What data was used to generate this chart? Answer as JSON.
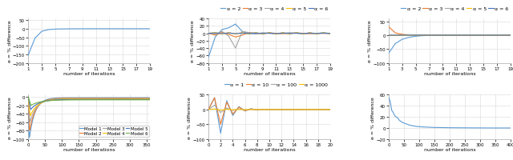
{
  "top_left": {
    "xlabel": "number of iterations",
    "ylabel": "e = % difference",
    "xlim": [
      1,
      19
    ],
    "ylim": [
      -200,
      60
    ],
    "yticks": [
      -200,
      -150,
      -100,
      -50,
      0,
      50
    ],
    "xticks": [
      1,
      3,
      5,
      7,
      9,
      11,
      13,
      15,
      17,
      19
    ],
    "line_color": "#5B9BD5",
    "x": [
      1,
      2,
      3,
      4,
      5,
      6,
      7,
      8,
      9,
      10,
      11,
      12,
      13,
      14,
      15,
      16,
      17,
      18,
      19
    ],
    "y": [
      -155,
      -55,
      -15,
      -5,
      -2,
      -1,
      -0.5,
      -0.3,
      -0.2,
      -0.1,
      -0.05,
      -0.02,
      -0.01,
      -0.005,
      -0.002,
      -0.001,
      -0.0005,
      -0.0002,
      -0.0001
    ]
  },
  "top_mid": {
    "xlabel": "number of iterations",
    "ylabel": "e = % difference",
    "xlim": [
      1,
      19
    ],
    "ylim": [
      -80,
      40
    ],
    "yticks": [
      -80,
      -60,
      -40,
      -20,
      0,
      20,
      40
    ],
    "xticks": [
      1,
      3,
      5,
      7,
      9,
      11,
      13,
      15,
      17,
      19
    ],
    "legend": [
      "α = 2",
      "α = 3",
      "α = 4",
      "α = 5",
      "α = 6"
    ],
    "colors": [
      "#5B9BD5",
      "#ED7D31",
      "#A5A5A5",
      "#FFC000",
      "#4472C4"
    ],
    "series": {
      "a2": [
        -65,
        -10,
        10,
        15,
        25,
        5,
        0,
        -2,
        1,
        0,
        -1,
        0,
        1,
        0,
        -1,
        0,
        0,
        1,
        0
      ],
      "a3": [
        0,
        -5,
        3,
        -3,
        -10,
        -5,
        2,
        0,
        -1,
        1,
        0,
        -1,
        0,
        1,
        0,
        -1,
        0,
        0,
        0
      ],
      "a4": [
        0,
        -2,
        5,
        -8,
        -40,
        5,
        2,
        -1,
        1,
        0,
        -1,
        0,
        1,
        0,
        -1,
        0,
        0,
        0,
        0
      ],
      "a5": [
        0,
        2,
        -2,
        2,
        -2,
        2,
        -2,
        2,
        -2,
        2,
        -2,
        2,
        -2,
        2,
        -2,
        2,
        -2,
        2,
        -2
      ],
      "a6": [
        0,
        1,
        -1,
        1,
        -1,
        1,
        -1,
        1,
        -1,
        1,
        -1,
        1,
        -1,
        1,
        -1,
        1,
        -1,
        1,
        -1
      ]
    }
  },
  "top_right": {
    "xlabel": "number of iterations",
    "ylabel": "e = % difference",
    "xlim": [
      1,
      19
    ],
    "ylim": [
      -100,
      60
    ],
    "yticks": [
      -100,
      -50,
      0,
      50
    ],
    "xticks": [
      1,
      3,
      5,
      7,
      9,
      11,
      13,
      15,
      17,
      19
    ],
    "legend": [
      "α = 2",
      "α = 3",
      "α = 4",
      "α = 5",
      "α = 6"
    ],
    "colors": [
      "#5B9BD5",
      "#ED7D31",
      "#A5A5A5",
      "#FFC000",
      "#4472C4"
    ],
    "series": {
      "a2": [
        -65,
        -30,
        -15,
        -8,
        -4,
        -2,
        -1,
        -0.5,
        -0.2,
        -0.1,
        -0.05,
        -0.02,
        -0.01,
        -0.005,
        -0.002,
        -0.001,
        -0.0005,
        -0.0002,
        -0.0001
      ],
      "a3": [
        30,
        8,
        3,
        1,
        0.5,
        0.2,
        0.1,
        0.05,
        0.02,
        0.01,
        0.005,
        0.002,
        0.001,
        0.0005,
        0.0002,
        0.0001,
        5e-05,
        2e-05,
        1e-05
      ],
      "a4": [
        0,
        -1,
        -0.5,
        -0.2,
        -0.1,
        -0.05,
        -0.02,
        -0.01,
        -0.005,
        -0.002,
        -0.001,
        -0.0005,
        -0.0002,
        -0.0001,
        -5e-05,
        -2e-05,
        -1e-05,
        -5e-06,
        -2e-06
      ],
      "a5": [
        0,
        -0.5,
        -0.2,
        -0.1,
        -0.05,
        -0.02,
        -0.01,
        -0.005,
        -0.002,
        -0.001,
        -0.0005,
        -0.0002,
        -0.0001,
        -5e-05,
        -2e-05,
        -1e-05,
        -5e-06,
        -2e-06,
        -1e-06
      ],
      "a6": [
        0,
        -0.2,
        -0.1,
        -0.05,
        -0.02,
        -0.01,
        -0.005,
        -0.002,
        -0.001,
        -0.0005,
        -0.0002,
        -0.0001,
        -5e-05,
        -2e-05,
        -1e-05,
        -5e-06,
        -2e-06,
        -1e-06,
        -5e-07
      ]
    }
  },
  "bot_left": {
    "xlabel": "number of iterations",
    "ylabel": "e = % difference",
    "xlim": [
      0,
      360
    ],
    "ylim": [
      -100,
      5
    ],
    "yticks": [
      -100,
      -80,
      -60,
      -40,
      -20,
      0
    ],
    "xticks": [
      0,
      50,
      100,
      150,
      200,
      250,
      300,
      350
    ],
    "legend": [
      "Model 1",
      "Model 2",
      "Model 3",
      "Model 4",
      "Model 5",
      "Model 6"
    ],
    "colors": [
      "#5B9BD5",
      "#ED7D31",
      "#A5A5A5",
      "#FFC000",
      "#4472C4",
      "#70AD47"
    ],
    "starts": [
      0,
      0,
      0,
      0,
      0,
      0
    ],
    "dips": [
      -100,
      -80,
      -60,
      -45,
      -30,
      -20
    ],
    "converges": [
      -2,
      -3,
      -4,
      -5,
      -6,
      -7
    ],
    "dip_pos": [
      3,
      4,
      5,
      6,
      7,
      8
    ],
    "speeds": [
      0.06,
      0.055,
      0.05,
      0.045,
      0.04,
      0.035
    ]
  },
  "bot_mid": {
    "xlabel": "number of iterations",
    "ylabel": "e = % difference",
    "xlim": [
      0,
      20
    ],
    "ylim": [
      -100,
      50
    ],
    "yticks": [
      -100,
      -50,
      0,
      50
    ],
    "xticks": [
      0,
      2,
      4,
      6,
      8,
      10,
      12,
      14,
      16,
      18,
      20
    ],
    "legend": [
      "α = 1",
      "α = 10",
      "α = 100",
      "α = 1000"
    ],
    "colors": [
      "#5B9BD5",
      "#ED7D31",
      "#A5A5A5",
      "#FFC000"
    ],
    "series": {
      "a1": [
        0,
        40,
        -80,
        30,
        -20,
        10,
        -5,
        3,
        -2,
        1,
        -0.5,
        0.3,
        -0.2,
        0.1,
        -0.05,
        0.03,
        -0.02,
        0.01,
        -0.005,
        0.003,
        0.001
      ],
      "a10": [
        0,
        40,
        -50,
        25,
        -15,
        8,
        -4,
        2,
        -1,
        0.5,
        -0.2,
        0.1,
        -0.05,
        0.03,
        -0.02,
        0.01,
        -0.005,
        0.003,
        -0.001,
        0.0005,
        0.0002
      ],
      "a100": [
        0,
        15,
        -10,
        5,
        -3,
        2,
        -1,
        0.5,
        -0.3,
        0.2,
        -0.1,
        0.05,
        -0.03,
        0.02,
        -0.01,
        0.005,
        -0.002,
        0.001,
        -0.0005,
        0.0002,
        0.0001
      ],
      "a1000": [
        0,
        2,
        -2,
        1,
        -0.8,
        0.5,
        -0.3,
        0.2,
        -0.1,
        0.05,
        -0.03,
        0.02,
        -0.01,
        0.005,
        -0.002,
        0.001,
        -0.0005,
        0.0002,
        -0.0001,
        5e-05,
        2e-05
      ]
    }
  },
  "bot_right": {
    "xlabel": "number of iterations",
    "ylabel": "e = % difference",
    "xlim": [
      0,
      400
    ],
    "ylim": [
      -20,
      60
    ],
    "yticks": [
      -20,
      0,
      20,
      40,
      60
    ],
    "xticks": [
      0,
      50,
      100,
      150,
      200,
      250,
      300,
      350,
      400
    ],
    "line_color": "#5B9BD5",
    "x": [
      0,
      5,
      10,
      15,
      20,
      25,
      30,
      35,
      40,
      45,
      50,
      60,
      70,
      80,
      90,
      100,
      110,
      120,
      130,
      140,
      150,
      175,
      200,
      250,
      300,
      350,
      400
    ],
    "y": [
      55,
      48,
      32,
      28,
      22,
      20,
      18,
      14,
      12,
      10,
      9,
      7,
      5,
      4,
      3,
      2.5,
      2,
      1.8,
      1.5,
      1.2,
      1.0,
      0.8,
      0.5,
      0.3,
      0.15,
      0.05,
      0.02
    ]
  },
  "bg_color": "#FFFFFF",
  "grid_color": "#D9D9D9",
  "text_fontsize": 4.5,
  "tick_fontsize": 4.0,
  "label_fontsize": 4.5
}
